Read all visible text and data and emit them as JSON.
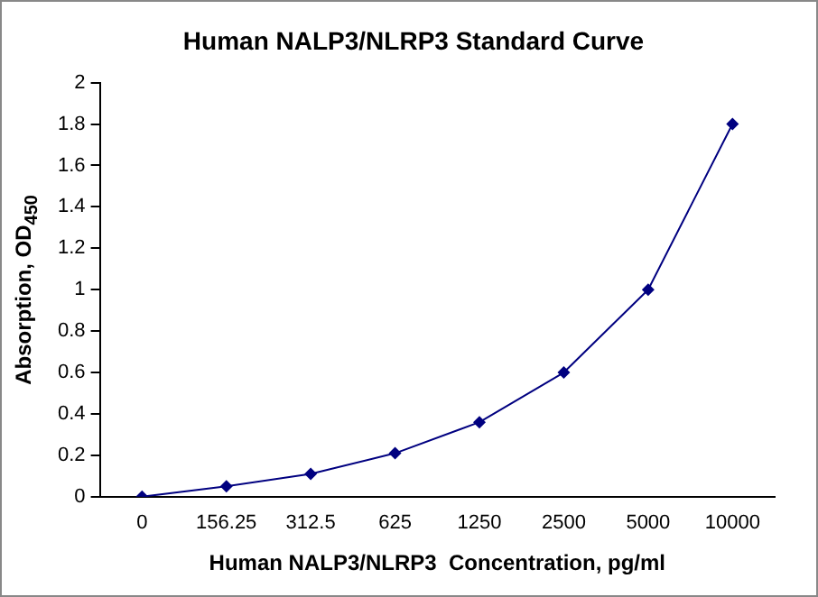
{
  "chart_data": {
    "type": "line",
    "title": "Human NALP3/NLRP3 Standard Curve",
    "xlabel": "Human NALP3/NLRP3  Concentration, pg/ml",
    "ylabel": "Absorption, OD$_{450}$",
    "categories": [
      "0",
      "156.25",
      "312.5",
      "625",
      "1250",
      "2500",
      "5000",
      "10000"
    ],
    "series": [
      {
        "color": "#000080",
        "values": [
          0,
          0.05,
          0.11,
          0.21,
          0.36,
          0.6,
          1.0,
          1.8
        ]
      }
    ],
    "ylim": [
      0,
      2
    ],
    "yticks": [
      0,
      0.2,
      0.4,
      0.6,
      0.8,
      1,
      1.2,
      1.4,
      1.6,
      1.8,
      2
    ],
    "grid": false,
    "legend": false,
    "marker": "diamond",
    "line_style": "solid"
  }
}
